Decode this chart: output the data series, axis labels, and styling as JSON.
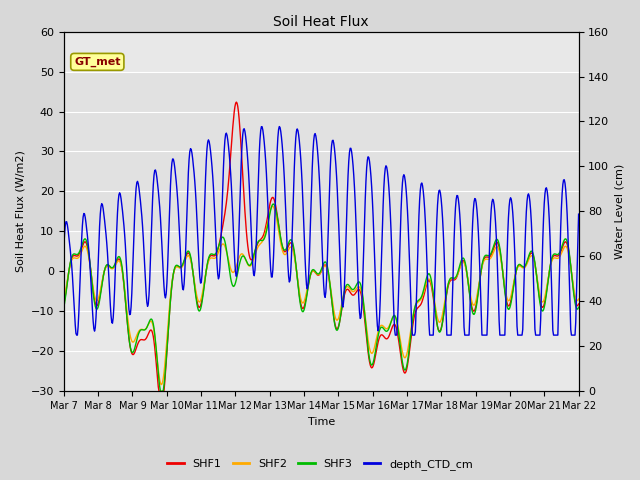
{
  "title": "Soil Heat Flux",
  "ylabel_left": "Soil Heat Flux (W/m2)",
  "ylabel_right": "Water Level (cm)",
  "xlabel": "Time",
  "ylim_left": [
    -30,
    60
  ],
  "ylim_right": [
    0,
    160
  ],
  "yticks_left": [
    -30,
    -20,
    -10,
    0,
    10,
    20,
    30,
    40,
    50,
    60
  ],
  "yticks_right": [
    0,
    20,
    40,
    60,
    80,
    100,
    120,
    140,
    160
  ],
  "fig_bg_color": "#d8d8d8",
  "plot_bg_inner": "#e8e8e8",
  "plot_bg_outer": "#d0d0d0",
  "colors": {
    "SHF1": "#ee0000",
    "SHF2": "#ffaa00",
    "SHF3": "#00bb00",
    "depth_CTD_cm": "#0000dd"
  },
  "legend_label": "GT_met",
  "legend_box_color": "#ffff99",
  "legend_box_edge": "#999900",
  "x_labels": [
    "Mar 7",
    "Mar 8",
    "Mar 9",
    "Mar 10",
    "Mar 11",
    "Mar 12",
    "Mar 13",
    "Mar 14",
    "Mar 15",
    "Mar 16",
    "Mar 17",
    "Mar 18",
    "Mar 19",
    "Mar 20",
    "Mar 21",
    "Mar 22"
  ],
  "linewidth": 1.0
}
